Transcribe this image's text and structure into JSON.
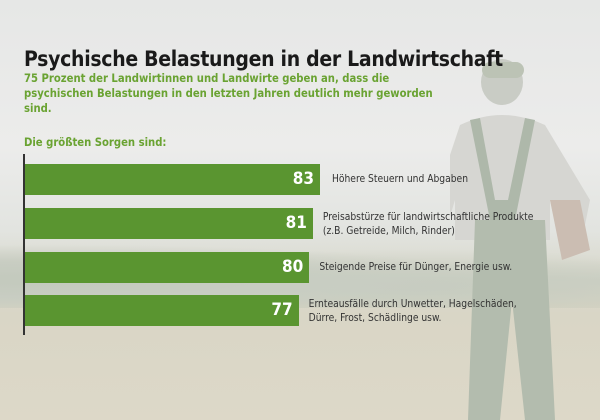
{
  "header": {
    "title": "Psychische Belastungen in der Landwirtschaft",
    "subtitle": "75 Prozent der Landwirtinnen und Landwirte geben an, dass die psychischen Belastungen in den letzten Jahren deutlich mehr geworden sind.",
    "lead": "Die größten Sorgen sind:"
  },
  "colors": {
    "bar": "#5a9530",
    "accent": "#6aa332"
  },
  "chart_data": {
    "type": "bar",
    "orientation": "horizontal",
    "title": "Psychische Belastungen in der Landwirtschaft",
    "xlabel": "",
    "ylabel": "",
    "xlim": [
      0,
      100
    ],
    "categories": [
      "Höhere Steuern und Abgaben",
      "Preisabstürze für landwirtschaftliche Produkte (z.B. Getreide, Milch, Rinder)",
      "Steigende Preise für Dünger, Energie usw.",
      "Ernteausfälle durch Unwetter, Hagelschäden, Dürre, Frost, Schädlinge usw."
    ],
    "values": [
      83,
      81,
      80,
      77
    ],
    "data_labels": [
      "83",
      "81",
      "80",
      "77"
    ]
  }
}
